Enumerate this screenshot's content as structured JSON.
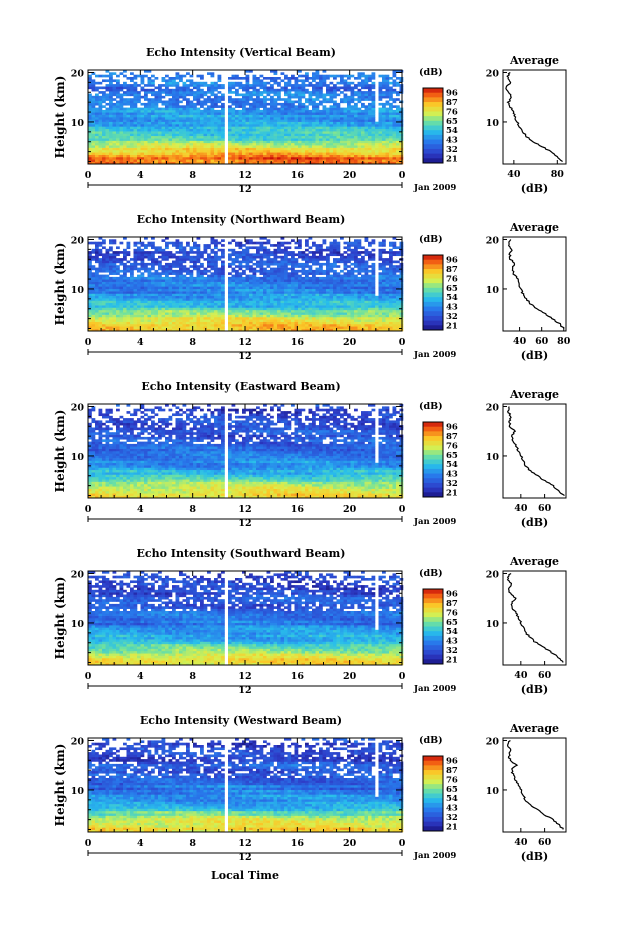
{
  "figure": {
    "shared_xlabel": "Local Time",
    "date_label": "Jan 2009",
    "day_label": "12",
    "colorbar_unit": "(dB)",
    "colorbar_ticks": [
      "96",
      "87",
      "76",
      "65",
      "54",
      "43",
      "32",
      "21"
    ],
    "colors": {
      "low": "#2b2fb0",
      "mid": "#2fb7e8",
      "high": "#e02410",
      "line": "#000000"
    }
  },
  "chart_data": [
    {
      "type": "heatmap",
      "title": "Echo Intensity (Vertical Beam)",
      "xlabel": "Local Time",
      "ylabel": "Height (km)",
      "x_ticks": [
        "0",
        "4",
        "8",
        "12",
        "16",
        "20",
        "0"
      ],
      "y_ticks": [
        "10",
        "20"
      ],
      "xlim": [
        0,
        24
      ],
      "ylim": [
        1.5,
        20.5
      ],
      "z_range": [
        21,
        96
      ],
      "z_unit": "dB",
      "gap_hours": [
        10.5,
        22
      ],
      "profile": {
        "title": "Average",
        "xlabel": "(dB)",
        "x_ticks": [
          "40",
          "80"
        ],
        "y_ticks": [
          "10",
          "20"
        ],
        "xlim": [
          30,
          88
        ],
        "heights_km": [
          2,
          3,
          4,
          5,
          6,
          7,
          8,
          9,
          10,
          11,
          12,
          13,
          14,
          15,
          16,
          17,
          18,
          19,
          20
        ],
        "values_db": [
          84,
          80,
          74,
          66,
          58,
          52,
          48,
          45,
          43,
          41,
          40,
          37,
          35,
          38,
          35,
          33,
          37,
          34,
          36
        ]
      }
    },
    {
      "type": "heatmap",
      "title": "Echo Intensity (Northward Beam)",
      "xlabel": "Local Time",
      "ylabel": "Height (km)",
      "x_ticks": [
        "0",
        "4",
        "8",
        "12",
        "16",
        "20",
        "0"
      ],
      "y_ticks": [
        "10",
        "20"
      ],
      "xlim": [
        0,
        24
      ],
      "ylim": [
        1.5,
        20.5
      ],
      "z_range": [
        21,
        96
      ],
      "z_unit": "dB",
      "gap_hours": [
        10.5,
        22
      ],
      "profile": {
        "title": "Average",
        "xlabel": "(dB)",
        "x_ticks": [
          "40",
          "60",
          "80"
        ],
        "y_ticks": [
          "10",
          "20"
        ],
        "xlim": [
          25,
          82
        ],
        "heights_km": [
          2,
          3,
          4,
          5,
          6,
          7,
          8,
          9,
          10,
          11,
          12,
          13,
          14,
          15,
          16,
          17,
          18,
          19,
          20
        ],
        "values_db": [
          80,
          76,
          70,
          63,
          56,
          50,
          46,
          43,
          41,
          40,
          38,
          35,
          33,
          36,
          32,
          31,
          33,
          30,
          32
        ]
      }
    },
    {
      "type": "heatmap",
      "title": "Echo Intensity (Eastward Beam)",
      "xlabel": "Local Time",
      "ylabel": "Height (km)",
      "x_ticks": [
        "0",
        "4",
        "8",
        "12",
        "16",
        "20",
        "0"
      ],
      "y_ticks": [
        "10",
        "20"
      ],
      "xlim": [
        0,
        24
      ],
      "ylim": [
        1.5,
        20.5
      ],
      "z_range": [
        21,
        96
      ],
      "z_unit": "dB",
      "gap_hours": [
        10.5,
        22
      ],
      "profile": {
        "title": "Average",
        "xlabel": "(dB)",
        "x_ticks": [
          "40",
          "60"
        ],
        "y_ticks": [
          "10",
          "20"
        ],
        "xlim": [
          25,
          78
        ],
        "heights_km": [
          2,
          3,
          4,
          5,
          6,
          7,
          8,
          9,
          10,
          11,
          12,
          13,
          14,
          15,
          16,
          17,
          18,
          19,
          20
        ],
        "values_db": [
          76,
          72,
          67,
          60,
          54,
          48,
          44,
          42,
          40,
          38,
          36,
          34,
          32,
          35,
          31,
          30,
          32,
          29,
          31
        ]
      }
    },
    {
      "type": "heatmap",
      "title": "Echo Intensity (Southward Beam)",
      "xlabel": "Local Time",
      "ylabel": "Height (km)",
      "x_ticks": [
        "0",
        "4",
        "8",
        "12",
        "16",
        "20",
        "0"
      ],
      "y_ticks": [
        "10",
        "20"
      ],
      "xlim": [
        0,
        24
      ],
      "ylim": [
        1.5,
        20.5
      ],
      "z_range": [
        21,
        96
      ],
      "z_unit": "dB",
      "gap_hours": [
        10.5,
        22
      ],
      "profile": {
        "title": "Average",
        "xlabel": "(dB)",
        "x_ticks": [
          "40",
          "60"
        ],
        "y_ticks": [
          "10",
          "20"
        ],
        "xlim": [
          25,
          78
        ],
        "heights_km": [
          2,
          3,
          4,
          5,
          6,
          7,
          8,
          9,
          10,
          11,
          12,
          13,
          14,
          15,
          16,
          17,
          18,
          19,
          20
        ],
        "values_db": [
          76,
          72,
          66,
          60,
          53,
          48,
          44,
          42,
          40,
          38,
          36,
          33,
          32,
          36,
          31,
          30,
          32,
          29,
          31
        ]
      }
    },
    {
      "type": "heatmap",
      "title": "Echo Intensity (Westward Beam)",
      "xlabel": "Local Time",
      "ylabel": "Height (km)",
      "x_ticks": [
        "0",
        "4",
        "8",
        "12",
        "16",
        "20",
        "0"
      ],
      "y_ticks": [
        "10",
        "20"
      ],
      "xlim": [
        0,
        24
      ],
      "ylim": [
        1.5,
        20.5
      ],
      "z_range": [
        21,
        96
      ],
      "z_unit": "dB",
      "gap_hours": [
        10.5,
        22
      ],
      "profile": {
        "title": "Average",
        "xlabel": "(dB)",
        "x_ticks": [
          "40",
          "60"
        ],
        "y_ticks": [
          "10",
          "20"
        ],
        "xlim": [
          25,
          78
        ],
        "heights_km": [
          2,
          3,
          4,
          5,
          6,
          7,
          8,
          9,
          10,
          11,
          12,
          13,
          14,
          15,
          16,
          17,
          18,
          19,
          20
        ],
        "values_db": [
          76,
          72,
          67,
          60,
          54,
          48,
          44,
          42,
          40,
          38,
          36,
          34,
          32,
          36,
          31,
          30,
          32,
          29,
          31
        ]
      }
    }
  ]
}
